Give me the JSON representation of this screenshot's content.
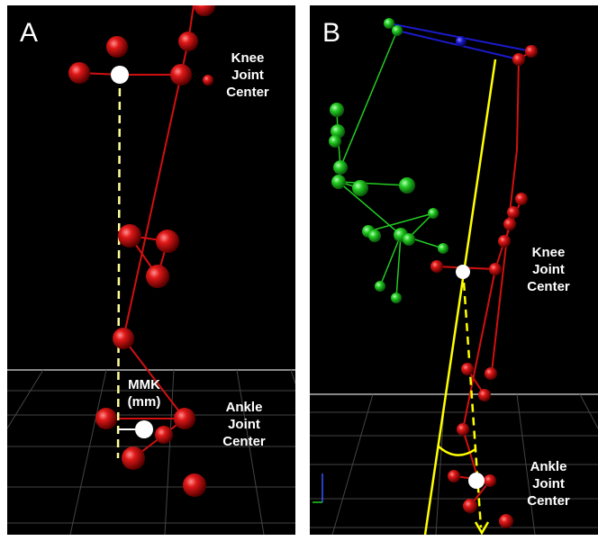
{
  "panels": [
    {
      "letter": "A",
      "labels": {
        "knee": [
          "Knee",
          "Joint",
          "Center"
        ],
        "mmk": [
          "MMK",
          "(mm)"
        ],
        "ankle": [
          "Ankle",
          "Joint",
          "Center"
        ]
      }
    },
    {
      "letter": "B",
      "labels": {
        "knee": [
          "Knee",
          "Joint",
          "Center"
        ],
        "ankle": [
          "Ankle",
          "Joint",
          "Center"
        ]
      }
    }
  ],
  "colors": {
    "background": "#000000",
    "marker_red": "#e01010",
    "marker_green": "#22cc22",
    "marker_blue": "#1a1acc",
    "joint_center": "#ffffff",
    "axis_line": "#ffff00",
    "mmk_dashed": "#ffff99"
  }
}
